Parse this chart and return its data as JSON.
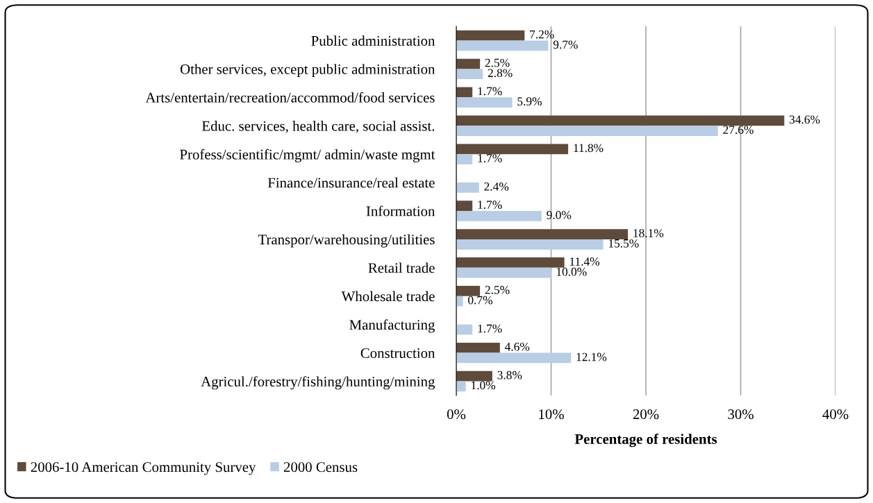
{
  "chart_data": {
    "type": "bar",
    "orientation": "horizontal",
    "xlabel": "Percentage of residents",
    "categories": [
      "Public administration",
      "Other services, except public administration",
      "Arts/entertain/recreation/accommod/food services",
      "Educ. services, health care, social assist.",
      "Profess/scientific/mgmt/ admin/waste mgmt",
      "Finance/insurance/real estate",
      "Information",
      "Transpor/warehousing/utilities",
      "Retail trade",
      "Wholesale trade",
      "Manufacturing",
      "Construction",
      "Agricul./forestry/fishing/hunting/mining"
    ],
    "series": [
      {
        "name": "2006-10 American Community Survey",
        "color": "#5f4b3b",
        "values": [
          7.2,
          2.5,
          1.7,
          34.6,
          11.8,
          null,
          1.7,
          18.1,
          11.4,
          2.5,
          null,
          4.6,
          3.8
        ],
        "value_labels": [
          "7.2%",
          "2.5%",
          "1.7%",
          "34.6%",
          "11.8%",
          null,
          "1.7%",
          "18.1%",
          "11.4%",
          "2.5%",
          null,
          "4.6%",
          "3.8%"
        ]
      },
      {
        "name": "2000 Census",
        "color": "#b9cde5",
        "values": [
          9.7,
          2.8,
          5.9,
          27.6,
          1.7,
          2.4,
          9.0,
          15.5,
          10.0,
          0.7,
          1.7,
          12.1,
          1.0
        ],
        "value_labels": [
          "9.7%",
          "2.8%",
          "5.9%",
          "27.6%",
          "1.7%",
          "2.4%",
          "9.0%",
          "15.5%",
          "10.0%",
          "0.7%",
          "1.7%",
          "12.1%",
          "1.0%"
        ]
      }
    ],
    "xlim": [
      0,
      40
    ],
    "xticks": [
      {
        "value": 0,
        "label": "0%"
      },
      {
        "value": 10,
        "label": "10%"
      },
      {
        "value": 20,
        "label": "20%"
      },
      {
        "value": 30,
        "label": "30%"
      },
      {
        "value": 40,
        "label": "40%"
      }
    ],
    "grid": "x",
    "legend": "bottom left"
  }
}
